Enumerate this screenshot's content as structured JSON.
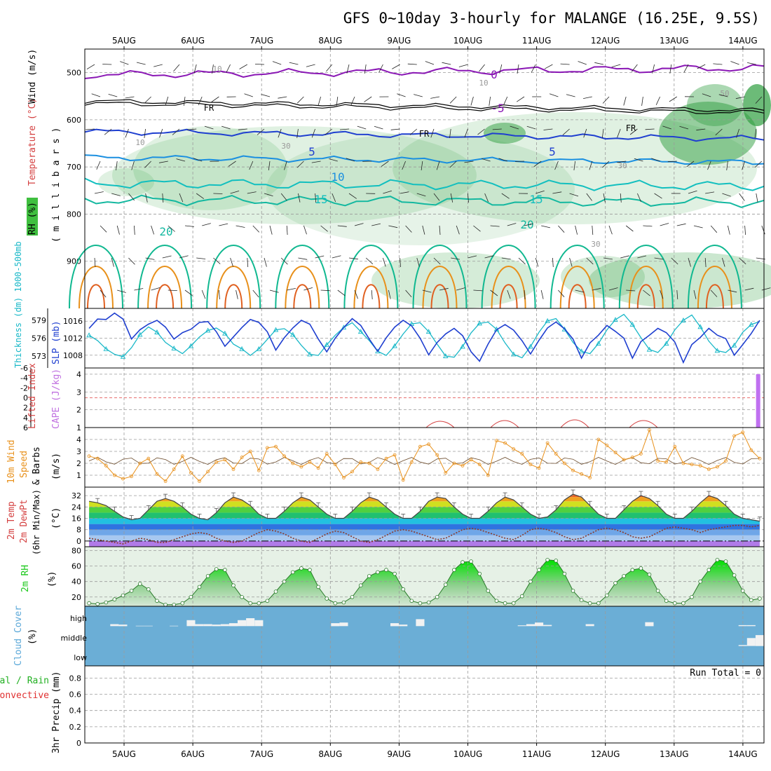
{
  "title": "GFS 0~10day 3-hourly for MALANGE (16.25E, 9.5S)",
  "dates": [
    "5AUG",
    "6AUG",
    "7AUG",
    "8AUG",
    "9AUG",
    "10AUG",
    "11AUG",
    "12AUG",
    "13AUG",
    "14AUG"
  ],
  "run_total": "Run Total = 0",
  "colors": {
    "purple": "#8a17b5",
    "blue": "#1f3fd0",
    "lightblue": "#1a8fe0",
    "cyan": "#12bfbf",
    "teal": "#10b890",
    "orange": "#e8901a",
    "rh_green": "#2ec82e",
    "cloud": "#6baed6",
    "slp": "#1f3fd0",
    "thick": "#19b8c8",
    "wind": "#e8901a",
    "rh2m": "#1ac81a"
  },
  "chart_data": [
    {
      "type": "heatmap",
      "name": "upper-air",
      "ylabel_parts": [
        "RH (%)",
        "Temperature (°C)",
        "Wind (m/s)"
      ],
      "ylabel2": "( m i l l i b a r s )",
      "y_ticks": [
        500,
        600,
        700,
        800,
        900
      ],
      "ylim": [
        1000,
        450
      ],
      "contour_labels": [
        "0",
        "-5",
        "FR",
        "5",
        "10",
        "15",
        "20",
        "10",
        "30",
        "50"
      ]
    },
    {
      "type": "line",
      "name": "slp-thickness",
      "ylabel_left": "Thickness (dm) 1000-500mb",
      "ylabel_right": "SLP (mb)",
      "left_ticks": [
        573,
        576,
        579
      ],
      "right_ticks": [
        1008,
        1012,
        1016
      ],
      "series": [
        {
          "name": "SLP",
          "values": [
            1014.3,
            1016.5,
            1016.4,
            1017.9,
            1016.5,
            1011.8,
            1014.0,
            1015.3,
            1016.2,
            1014.6,
            1011.8,
            1013.3,
            1014.1,
            1015.7,
            1015.9,
            1013.5,
            1010.1,
            1012.3,
            1014.5,
            1016.4,
            1015.7,
            1013.5,
            1009.2,
            1012.1,
            1014.4,
            1016.2,
            1015.3,
            1011.8,
            1008.8,
            1012.0,
            1014.5,
            1016.6,
            1015.0,
            1011.8,
            1008.9,
            1012.1,
            1014.6,
            1016.2,
            1014.9,
            1012.0,
            1008.1,
            1011.0,
            1013.0,
            1014.3,
            1012.6,
            1008.8,
            1006.6,
            1010.6,
            1014.0,
            1015.2,
            1013.9,
            1011.4,
            1008.3,
            1011.5,
            1014.4,
            1015.8,
            1014.2,
            1011.8,
            1007.3,
            1010.9,
            1012.7,
            1015.0,
            1013.6,
            1012.0,
            1007.3,
            1011.2,
            1012.7,
            1014.3,
            1013.3,
            1011.1,
            1006.3,
            1010.5,
            1012.2,
            1014.3,
            1012.7,
            1011.9,
            1008.0,
            1010.5,
            1013.1,
            1016.2
          ]
        },
        {
          "name": "Thickness",
          "values": [
            576.5,
            575.6,
            574.2,
            573.3,
            572.9,
            574.4,
            576.6,
            577.9,
            577.0,
            575.3,
            574.3,
            573.4,
            574.7,
            576.2,
            577.3,
            577.7,
            576.8,
            575.0,
            574.2,
            573.1,
            574.2,
            575.8,
            577.4,
            577.6,
            576.6,
            574.8,
            573.3,
            573.1,
            574.9,
            576.5,
            577.8,
            578.6,
            577.1,
            575.6,
            573.8,
            573.1,
            574.7,
            576.7,
            578.4,
            578.6,
            577.1,
            575.0,
            573.0,
            572.8,
            574.6,
            576.9,
            578.5,
            578.7,
            577.5,
            575.2,
            573.3,
            572.7,
            574.6,
            577.0,
            578.9,
            579.3,
            577.5,
            575.3,
            573.8,
            573.4,
            575.1,
            577.4,
            579.1,
            580.0,
            578.3,
            576.1,
            574.1,
            573.6,
            575.1,
            577.4,
            579.0,
            579.9,
            577.9,
            575.5,
            573.9,
            573.6,
            574.8,
            577.0,
            578.3,
            578.8
          ]
        }
      ]
    },
    {
      "type": "bar",
      "name": "cape-lifted-index",
      "ylabel_left": "Lifted Index",
      "ylabel_right": "CAPE (J/kg)",
      "left_ticks": [
        6,
        4,
        2,
        0,
        -2,
        -4,
        -6
      ],
      "right_ticks": [
        1,
        2,
        3,
        4
      ],
      "cape_bars": [
        {
          "day_offset": 9.6,
          "value": 4.0
        }
      ]
    },
    {
      "type": "line",
      "name": "10m-wind",
      "ylabel": "10m Wind Speed & Barbs (m/s)",
      "ylabel_parts": [
        "10m Wind",
        "Speed",
        "& Barbs",
        "(m/s)"
      ],
      "ticks": [
        1,
        2,
        3,
        4
      ],
      "ylim": [
        0,
        5
      ],
      "series": [
        {
          "name": "Speed",
          "values": [
            2.6,
            2.4,
            1.8,
            1.0,
            0.7,
            0.9,
            2.0,
            2.4,
            1.1,
            0.5,
            1.5,
            2.6,
            1.2,
            0.5,
            1.3,
            2.1,
            2.3,
            1.5,
            2.5,
            3.0,
            1.4,
            3.3,
            3.4,
            2.6,
            2.0,
            1.7,
            2.1,
            1.6,
            2.8,
            1.9,
            0.8,
            1.3,
            2.1,
            2.0,
            1.5,
            2.4,
            2.7,
            0.6,
            2.1,
            3.4,
            3.6,
            2.7,
            1.2,
            2.0,
            1.8,
            2.3,
            1.9,
            1.0,
            3.9,
            3.7,
            3.2,
            2.8,
            1.9,
            1.6,
            3.7,
            2.8,
            2.0,
            1.4,
            1.1,
            0.8,
            4.0,
            3.5,
            2.9,
            2.3,
            2.5,
            2.8,
            4.8,
            2.2,
            2.1,
            3.4,
            2.0,
            1.9,
            1.8,
            1.5,
            1.7,
            2.2,
            4.3,
            4.6,
            3.1,
            2.4
          ]
        }
      ]
    },
    {
      "type": "area",
      "name": "2m-temp",
      "ylabel_parts": [
        "2m Temp",
        "2m DewPt",
        "(6hr Min/Max)",
        "(°C)"
      ],
      "ticks": [
        0,
        8,
        16,
        24,
        32
      ],
      "ylim": [
        -4,
        38
      ],
      "series": [
        {
          "name": "Temp",
          "values": [
            28,
            27,
            25,
            21,
            17,
            15,
            16,
            22,
            28,
            30,
            28,
            24,
            19,
            16,
            15,
            20,
            27,
            31,
            29,
            25,
            19,
            16,
            16,
            21,
            27,
            31,
            29,
            24,
            19,
            16,
            16,
            21,
            27,
            31,
            29,
            24,
            19,
            16,
            16,
            21,
            28,
            31,
            30,
            24,
            19,
            16,
            16,
            21,
            27,
            31,
            29,
            24,
            19,
            16,
            17,
            22,
            29,
            33,
            31,
            25,
            19,
            16,
            16,
            22,
            28,
            32,
            30,
            25,
            19,
            16,
            16,
            21,
            27,
            32,
            30,
            25,
            19,
            16,
            15,
            14
          ]
        },
        {
          "name": "DewPt",
          "values": [
            2,
            1,
            0,
            -1,
            -2,
            0,
            2,
            1,
            -1,
            -1,
            1,
            3,
            5,
            6,
            5,
            2,
            0,
            -1,
            0,
            3,
            6,
            8,
            7,
            5,
            2,
            0,
            -1,
            2,
            5,
            7,
            6,
            3,
            0,
            -1,
            1,
            4,
            7,
            8,
            7,
            5,
            3,
            1,
            2,
            5,
            8,
            9,
            8,
            6,
            4,
            2,
            1,
            4,
            8,
            9,
            8,
            6,
            3,
            1,
            2,
            5,
            8,
            9,
            8,
            6,
            3,
            2,
            3,
            6,
            9,
            10,
            9,
            8,
            6,
            8,
            9,
            10,
            11,
            11,
            10,
            11
          ]
        }
      ]
    },
    {
      "type": "area",
      "name": "2m-rh",
      "ylabel": "2m RH",
      "yunit": "(%)",
      "ticks": [
        20,
        40,
        60,
        80
      ],
      "ylim": [
        8,
        85
      ],
      "series": [
        {
          "name": "RH",
          "values": [
            12,
            11,
            13,
            17,
            22,
            28,
            37,
            30,
            15,
            10,
            10,
            12,
            20,
            33,
            47,
            56,
            55,
            35,
            20,
            12,
            12,
            15,
            27,
            40,
            52,
            57,
            55,
            33,
            18,
            12,
            13,
            20,
            35,
            47,
            52,
            55,
            50,
            30,
            15,
            12,
            13,
            20,
            36,
            55,
            65,
            66,
            50,
            28,
            15,
            12,
            12,
            21,
            40,
            55,
            68,
            67,
            50,
            28,
            16,
            12,
            12,
            22,
            38,
            47,
            55,
            57,
            49,
            28,
            15,
            12,
            12,
            20,
            40,
            55,
            68,
            66,
            48,
            28,
            16,
            18
          ]
        }
      ]
    },
    {
      "type": "bar",
      "name": "cloud-cover",
      "ylabel": "Cloud Cover",
      "yunit": "(%)",
      "levels": [
        "high",
        "middle",
        "low"
      ],
      "high": [
        0,
        0,
        0,
        10,
        8,
        0,
        2,
        2,
        0,
        0,
        2,
        0,
        30,
        10,
        10,
        8,
        10,
        15,
        30,
        40,
        30,
        0,
        0,
        0,
        0,
        0,
        0,
        0,
        0,
        15,
        18,
        0,
        0,
        0,
        0,
        0,
        15,
        8,
        0,
        35,
        0,
        0,
        0,
        0,
        0,
        0,
        0,
        0,
        0,
        0,
        0,
        4,
        10,
        18,
        6,
        0,
        0,
        0,
        0,
        10,
        0,
        0,
        0,
        0,
        0,
        0,
        20,
        0,
        0,
        0,
        0,
        0,
        0,
        0,
        0,
        0,
        0,
        5,
        5,
        0
      ],
      "middle": [
        0,
        0,
        0,
        0,
        0,
        0,
        0,
        0,
        0,
        0,
        0,
        0,
        0,
        0,
        0,
        0,
        0,
        0,
        0,
        0,
        0,
        0,
        0,
        0,
        0,
        0,
        0,
        0,
        0,
        0,
        0,
        0,
        0,
        0,
        0,
        0,
        0,
        0,
        0,
        0,
        0,
        0,
        0,
        0,
        0,
        0,
        0,
        0,
        0,
        0,
        0,
        0,
        0,
        0,
        0,
        0,
        0,
        0,
        0,
        0,
        0,
        0,
        0,
        0,
        0,
        0,
        0,
        0,
        0,
        0,
        0,
        0,
        0,
        0,
        0,
        0,
        0,
        5,
        40,
        55
      ]
    },
    {
      "type": "bar",
      "name": "precip",
      "ylabel_parts": [
        "Total / Rain",
        "Convective",
        "3hr Precip (mm)"
      ],
      "ticks": [
        0,
        0.2,
        0.4,
        0.6,
        0.8
      ],
      "ylim": [
        0,
        0.95
      ],
      "values": []
    }
  ]
}
